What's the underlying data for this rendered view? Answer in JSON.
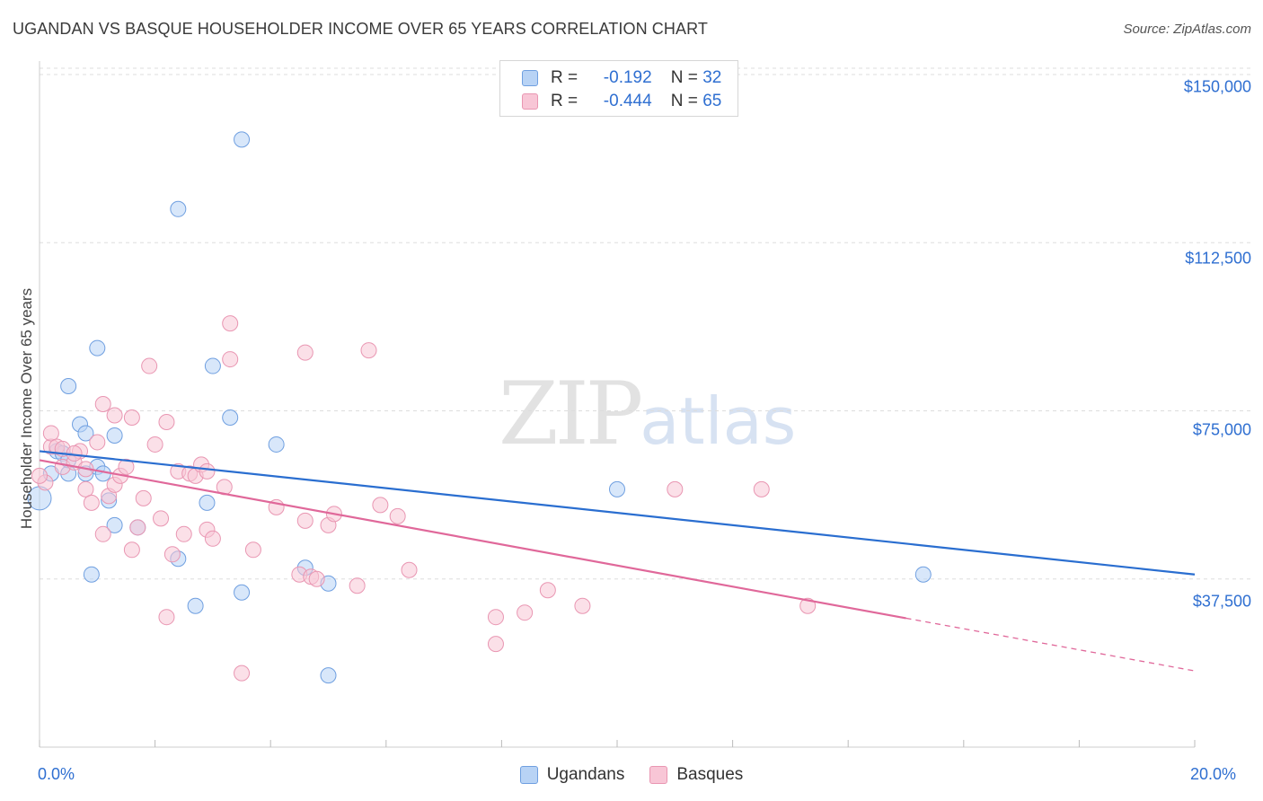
{
  "header": {
    "title": "UGANDAN VS BASQUE HOUSEHOLDER INCOME OVER 65 YEARS CORRELATION CHART",
    "source": "Source: ZipAtlas.com"
  },
  "watermark": {
    "zip": "ZIP",
    "atlas": "atlas"
  },
  "legend": {
    "rows": [
      {
        "r_label": "R =",
        "r_value": "-0.192",
        "n_label": "N =",
        "n_value": "32"
      },
      {
        "r_label": "R =",
        "r_value": "-0.444",
        "n_label": "N =",
        "n_value": "65"
      }
    ],
    "bottom": [
      "Ugandans",
      "Basques"
    ]
  },
  "colors": {
    "ugandans_fill": "#b8d3f5",
    "ugandans_stroke": "#6f9fe0",
    "ugandans_line": "#2a6ed0",
    "basques_fill": "#f8c6d6",
    "basques_stroke": "#e996b2",
    "basques_line": "#e0689a",
    "axis_label": "#2f6fd1",
    "grid": "#dddddd"
  },
  "chart_data": {
    "type": "scatter",
    "title": "UGANDAN VS BASQUE HOUSEHOLDER INCOME OVER 65 YEARS CORRELATION CHART",
    "xlabel": "",
    "ylabel": "Householder Income Over 65 years",
    "xlim": [
      0,
      20
    ],
    "ylim": [
      0,
      153000
    ],
    "x_unit": "%",
    "x_tick_labels": [
      "0.0%",
      "20.0%"
    ],
    "y_ticks": [
      37500,
      75000,
      112500,
      150000
    ],
    "y_tick_labels": [
      "$37,500",
      "$75,000",
      "$112,500",
      "$150,000"
    ],
    "grid": true,
    "legend_position": "top-center",
    "series": [
      {
        "name": "Ugandans",
        "R": -0.192,
        "N": 32,
        "trend": {
          "x": [
            0,
            20
          ],
          "y": [
            66000,
            38500
          ],
          "dashed_from": null
        },
        "points": [
          [
            0.0,
            55500
          ],
          [
            0.2,
            61000
          ],
          [
            0.3,
            66000
          ],
          [
            0.4,
            65500
          ],
          [
            0.5,
            61000
          ],
          [
            0.5,
            64000
          ],
          [
            0.5,
            80500
          ],
          [
            0.7,
            72000
          ],
          [
            0.8,
            61000
          ],
          [
            0.8,
            70000
          ],
          [
            0.9,
            38500
          ],
          [
            1.0,
            89000
          ],
          [
            1.0,
            62500
          ],
          [
            1.1,
            61000
          ],
          [
            1.2,
            55000
          ],
          [
            1.3,
            49500
          ],
          [
            1.3,
            69500
          ],
          [
            1.7,
            49000
          ],
          [
            2.4,
            120000
          ],
          [
            2.4,
            42000
          ],
          [
            2.7,
            31500
          ],
          [
            2.9,
            54500
          ],
          [
            3.0,
            85000
          ],
          [
            3.3,
            73500
          ],
          [
            3.5,
            34500
          ],
          [
            3.5,
            135500
          ],
          [
            4.1,
            67500
          ],
          [
            4.6,
            40000
          ],
          [
            5.0,
            36500
          ],
          [
            5.0,
            16000
          ],
          [
            10.0,
            57500
          ],
          [
            15.3,
            38500
          ]
        ]
      },
      {
        "name": "Basques",
        "R": -0.444,
        "N": 65,
        "trend": {
          "x": [
            0,
            20
          ],
          "y": [
            64000,
            17000
          ],
          "solid_until_x": 15.0
        },
        "points": [
          [
            0.1,
            59000
          ],
          [
            0.2,
            67000
          ],
          [
            0.2,
            70000
          ],
          [
            0.3,
            67000
          ],
          [
            0.4,
            62500
          ],
          [
            0.4,
            66500
          ],
          [
            0.6,
            63500
          ],
          [
            0.7,
            66000
          ],
          [
            0.8,
            62000
          ],
          [
            0.8,
            57500
          ],
          [
            0.9,
            54500
          ],
          [
            1.0,
            68000
          ],
          [
            1.1,
            47500
          ],
          [
            1.1,
            76500
          ],
          [
            1.2,
            56000
          ],
          [
            1.3,
            58500
          ],
          [
            1.3,
            74000
          ],
          [
            1.4,
            60500
          ],
          [
            1.5,
            62500
          ],
          [
            1.6,
            44000
          ],
          [
            1.6,
            73500
          ],
          [
            1.7,
            49000
          ],
          [
            1.8,
            55500
          ],
          [
            1.9,
            85000
          ],
          [
            2.0,
            67500
          ],
          [
            2.1,
            51000
          ],
          [
            2.2,
            29000
          ],
          [
            2.2,
            72500
          ],
          [
            2.3,
            43000
          ],
          [
            2.4,
            61500
          ],
          [
            2.5,
            47500
          ],
          [
            2.6,
            61000
          ],
          [
            2.7,
            60500
          ],
          [
            2.8,
            63000
          ],
          [
            2.9,
            61500
          ],
          [
            2.9,
            48500
          ],
          [
            3.0,
            46500
          ],
          [
            3.2,
            58000
          ],
          [
            3.3,
            94500
          ],
          [
            3.3,
            86500
          ],
          [
            3.5,
            16500
          ],
          [
            3.7,
            44000
          ],
          [
            4.1,
            53500
          ],
          [
            4.5,
            38500
          ],
          [
            4.6,
            50500
          ],
          [
            4.6,
            88000
          ],
          [
            4.7,
            38000
          ],
          [
            4.8,
            37500
          ],
          [
            5.0,
            49500
          ],
          [
            5.1,
            52000
          ],
          [
            5.5,
            36000
          ],
          [
            5.7,
            88500
          ],
          [
            5.9,
            54000
          ],
          [
            6.2,
            51500
          ],
          [
            6.4,
            39500
          ],
          [
            7.9,
            23000
          ],
          [
            7.9,
            29000
          ],
          [
            8.4,
            30000
          ],
          [
            8.8,
            35000
          ],
          [
            9.4,
            31500
          ],
          [
            11.0,
            57500
          ],
          [
            12.5,
            57500
          ],
          [
            13.3,
            31500
          ],
          [
            0.0,
            60500
          ],
          [
            0.6,
            65500
          ]
        ]
      }
    ]
  }
}
